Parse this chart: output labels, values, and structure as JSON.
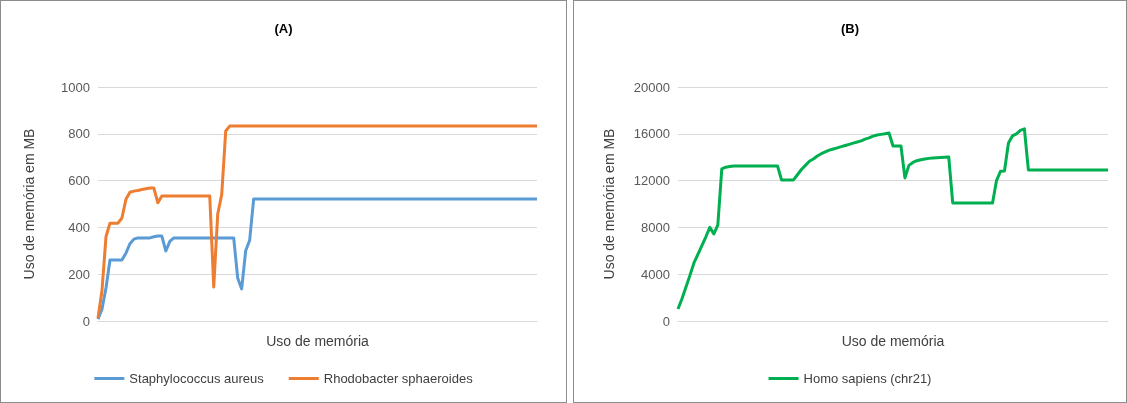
{
  "chart_data": [
    {
      "type": "line",
      "title": "(A)",
      "xlabel": "Uso de memória",
      "ylabel": "Uso de memória em MB",
      "ylim": [
        0,
        1000
      ],
      "yticks": [
        0,
        200,
        400,
        600,
        800,
        1000
      ],
      "grid": "y",
      "legend": "bottom",
      "marker": "none",
      "line_style": "solid",
      "categories": [
        null,
        null,
        null,
        null,
        null,
        null,
        null,
        null,
        null,
        null,
        null,
        null,
        null,
        null,
        null,
        null,
        null,
        null,
        null,
        null,
        null,
        null,
        null,
        null,
        null,
        null,
        null,
        null,
        null,
        null,
        null,
        null,
        null,
        null,
        null,
        null,
        null,
        null,
        null,
        null,
        null,
        null,
        null,
        null,
        null,
        null,
        null,
        null,
        null,
        null,
        null,
        null,
        null,
        null,
        null,
        null,
        null,
        null,
        null,
        null,
        null,
        null,
        null,
        null,
        null,
        null,
        null,
        null,
        null,
        null,
        null,
        null,
        null,
        null,
        null,
        null,
        null,
        null,
        null,
        null,
        null,
        null,
        null,
        null,
        null,
        null,
        null,
        null,
        null,
        null,
        null,
        null,
        null,
        null,
        null,
        null,
        null,
        null,
        null,
        null,
        null,
        null,
        null,
        null,
        null,
        null,
        null,
        null,
        null,
        null,
        null
      ],
      "series": [
        {
          "name": "Staphylococcus aureus",
          "color": "#5b9bd5",
          "values": [
            8,
            50,
            141,
            261,
            261,
            261,
            261,
            290,
            330,
            350,
            355,
            355,
            355,
            355,
            360,
            363,
            363,
            299,
            340,
            355,
            355,
            355,
            355,
            355,
            355,
            355,
            355,
            355,
            355,
            355,
            355,
            355,
            355,
            355,
            355,
            184,
            137,
            300,
            345,
            521,
            521,
            521,
            521,
            521,
            521,
            521,
            521,
            521,
            521,
            521,
            521,
            521,
            521,
            521,
            521,
            521,
            521,
            521,
            521,
            521,
            521,
            521,
            521,
            521,
            521,
            521,
            521,
            521,
            521,
            521,
            521,
            521,
            521,
            521,
            521,
            521,
            521,
            521,
            521,
            521,
            521,
            521,
            521,
            521,
            521,
            521,
            521,
            521,
            521,
            521,
            521,
            521,
            521,
            521,
            521,
            521,
            521,
            521,
            521,
            521,
            521,
            521,
            521,
            521,
            521,
            521,
            521,
            521,
            521,
            521,
            521
          ]
        },
        {
          "name": "Rhodobacter sphaeroides",
          "color": "#ed7d31",
          "values": [
            13,
            130,
            360,
            418,
            418,
            418,
            440,
            520,
            550,
            555,
            558,
            562,
            565,
            568,
            568,
            505,
            534,
            534,
            534,
            534,
            534,
            534,
            534,
            534,
            534,
            534,
            534,
            534,
            534,
            145,
            457,
            540,
            812,
            833,
            833,
            833,
            833,
            833,
            833,
            833,
            833,
            833,
            833,
            833,
            833,
            833,
            833,
            833,
            833,
            833,
            833,
            833,
            833,
            833,
            833,
            833,
            833,
            833,
            833,
            833,
            833,
            833,
            833,
            833,
            833,
            833,
            833,
            833,
            833,
            833,
            833,
            833,
            833,
            833,
            833,
            833,
            833,
            833,
            833,
            833,
            833,
            833,
            833,
            833,
            833,
            833,
            833,
            833,
            833,
            833,
            833,
            833,
            833,
            833,
            833,
            833,
            833,
            833,
            833,
            833,
            833,
            833,
            833,
            833,
            833,
            833,
            833,
            833,
            833,
            833,
            833
          ]
        }
      ]
    },
    {
      "type": "line",
      "title": "(B)",
      "xlabel": "Uso de memória",
      "ylabel": "Uso de memória em MB",
      "ylim": [
        0,
        20000
      ],
      "yticks": [
        0,
        4000,
        8000,
        12000,
        16000,
        20000
      ],
      "grid": "y",
      "legend": "bottom",
      "marker": "none",
      "line_style": "solid",
      "categories": [
        null,
        null,
        null,
        null,
        null,
        null,
        null,
        null,
        null,
        null,
        null,
        null,
        null,
        null,
        null,
        null,
        null,
        null,
        null,
        null,
        null,
        null,
        null,
        null,
        null,
        null,
        null,
        null,
        null,
        null,
        null,
        null,
        null,
        null,
        null,
        null,
        null,
        null,
        null,
        null,
        null,
        null,
        null,
        null,
        null,
        null,
        null,
        null,
        null,
        null,
        null,
        null,
        null,
        null,
        null,
        null,
        null,
        null,
        null,
        null,
        null,
        null,
        null,
        null,
        null,
        null,
        null,
        null,
        null,
        null,
        null,
        null,
        null,
        null,
        null,
        null,
        null,
        null,
        null,
        null,
        null,
        null,
        null,
        null,
        null,
        null,
        null,
        null,
        null,
        null,
        null,
        null,
        null,
        null,
        null,
        null,
        null,
        null,
        null,
        null,
        null,
        null,
        null,
        null,
        null,
        null,
        null,
        null,
        null
      ],
      "series": [
        {
          "name": "Homo sapiens (chr21)",
          "color": "#00b050",
          "values": [
            1030,
            1900,
            2900,
            3900,
            4960,
            5700,
            6450,
            7200,
            8000,
            7440,
            8200,
            13000,
            13150,
            13200,
            13250,
            13250,
            13250,
            13250,
            13250,
            13250,
            13250,
            13250,
            13250,
            13250,
            13250,
            13250,
            12060,
            12060,
            12060,
            12060,
            12500,
            12950,
            13300,
            13650,
            13850,
            14100,
            14300,
            14450,
            14600,
            14700,
            14800,
            14900,
            15000,
            15100,
            15200,
            15300,
            15400,
            15550,
            15650,
            15800,
            15900,
            15950,
            16000,
            16070,
            14960,
            14960,
            14960,
            12230,
            13300,
            13550,
            13700,
            13780,
            13850,
            13900,
            13940,
            13960,
            13980,
            14000,
            14020,
            10090,
            10090,
            10090,
            10090,
            10090,
            10090,
            10090,
            10090,
            10090,
            10090,
            10090,
            12000,
            12800,
            12830,
            15220,
            15820,
            16000,
            16300,
            16420,
            12910,
            12910,
            12910,
            12910,
            12910,
            12910,
            12910,
            12910,
            12910,
            12910,
            12910,
            12910,
            12910,
            12910,
            12910,
            12910,
            12910,
            12910,
            12910,
            12910,
            12910
          ]
        }
      ]
    }
  ]
}
